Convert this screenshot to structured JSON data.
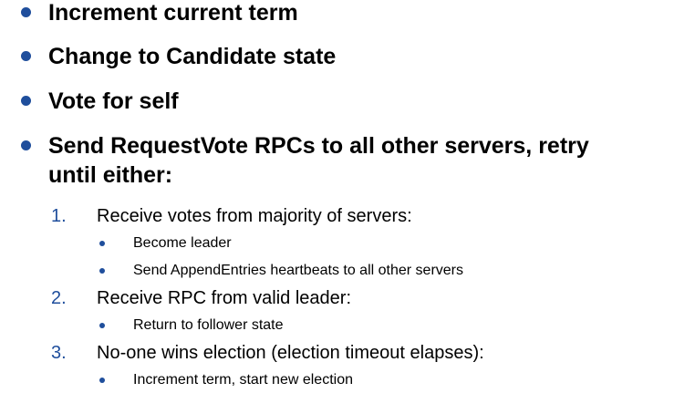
{
  "bullets": [
    "Increment current term",
    "Change to Candidate state",
    "Vote for self",
    "Send RequestVote RPCs to all other servers, retry",
    "until either:"
  ],
  "steps": [
    {
      "num": "1.",
      "text": "Receive votes from majority of servers:",
      "subs": [
        "Become leader",
        "Send AppendEntries heartbeats to all other servers"
      ]
    },
    {
      "num": "2.",
      "text": "Receive RPC from valid leader:",
      "subs": [
        "Return to follower state"
      ]
    },
    {
      "num": "3.",
      "text": "No-one wins election (election timeout elapses):",
      "subs": [
        "Increment term, start new election"
      ]
    }
  ],
  "colors": {
    "accent": "#1f4e9c",
    "text": "#000000"
  }
}
